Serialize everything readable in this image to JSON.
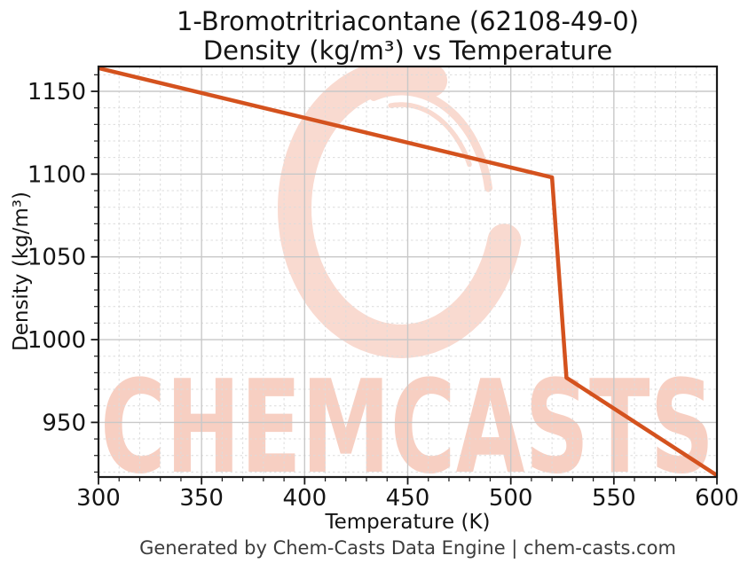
{
  "chart_data": {
    "type": "line",
    "title_line1": "1-Bromotritriacontane (62108-49-0)",
    "title_line2": "Density (kg/m³) vs Temperature",
    "xlabel": "Temperature (K)",
    "ylabel": "Density (kg/m³)",
    "xlim": [
      300,
      600
    ],
    "ylim": [
      917,
      1165
    ],
    "x_ticks": [
      300,
      350,
      400,
      450,
      500,
      550,
      600
    ],
    "y_ticks": [
      950,
      1000,
      1050,
      1100,
      1150
    ],
    "minor_step_x": 10,
    "minor_step_y": 10,
    "grid": "major solid + minor dashed",
    "legend": "none",
    "series": [
      {
        "name": "Density",
        "color": "#d4521e",
        "points": [
          [
            300,
            1164
          ],
          [
            520,
            1098
          ],
          [
            527,
            977
          ],
          [
            600,
            918
          ]
        ]
      }
    ]
  },
  "watermark": {
    "text": "CHEMCASTS",
    "logo": "chemcasts-swirl-logo",
    "text_color": "#f7cfc2",
    "logo_color": "#f9dad0"
  },
  "footer": {
    "text": "Generated by Chem-Casts Data Engine | chem-casts.com"
  },
  "colors": {
    "line": "#d4521e",
    "spine": "#1a1a1a",
    "major_grid": "#c8c8c8",
    "minor_grid": "#dcdcdc",
    "tick_label": "#141414",
    "footer_text": "#3c3c3c"
  }
}
